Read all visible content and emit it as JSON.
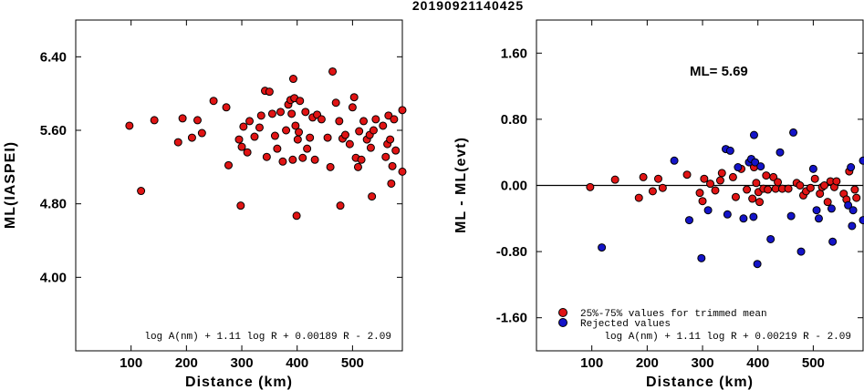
{
  "title": "20190921140425",
  "colors": {
    "accepted": "#e01414",
    "rejected": "#1414c8",
    "axis": "#000000"
  },
  "chart_data": [
    {
      "type": "scatter",
      "xlabel": "Distance (km)",
      "ylabel": "ML(IASPEI)",
      "xlim": [
        0,
        590
      ],
      "ylim": [
        3.2,
        6.8
      ],
      "xticks": [
        "100",
        "200",
        "300",
        "400",
        "500"
      ],
      "xtick_values": [
        100,
        200,
        300,
        400,
        500
      ],
      "yticks": [
        "4.00",
        "4.80",
        "5.60",
        "6.40"
      ],
      "ytick_values": [
        4.0,
        4.8,
        5.6,
        6.4
      ],
      "formula": "log A(nm) + 1.11 log R + 0.00189 R - 2.09",
      "series": [
        {
          "color": "red",
          "points": [
            [
              97,
              5.65
            ],
            [
              118,
              4.94
            ],
            [
              142,
              5.71
            ],
            [
              185,
              5.47
            ],
            [
              193,
              5.73
            ],
            [
              210,
              5.52
            ],
            [
              220,
              5.71
            ],
            [
              228,
              5.57
            ],
            [
              249,
              5.92
            ],
            [
              272,
              5.85
            ],
            [
              276,
              5.22
            ],
            [
              295,
              5.5
            ],
            [
              298,
              4.78
            ],
            [
              300,
              5.42
            ],
            [
              303,
              5.64
            ],
            [
              310,
              5.36
            ],
            [
              314,
              5.7
            ],
            [
              323,
              5.53
            ],
            [
              332,
              5.63
            ],
            [
              335,
              5.76
            ],
            [
              342,
              6.03
            ],
            [
              345,
              5.31
            ],
            [
              350,
              6.02
            ],
            [
              355,
              5.78
            ],
            [
              360,
              5.54
            ],
            [
              364,
              5.4
            ],
            [
              370,
              5.8
            ],
            [
              374,
              5.26
            ],
            [
              380,
              5.6
            ],
            [
              384,
              5.88
            ],
            [
              388,
              5.93
            ],
            [
              390,
              5.78
            ],
            [
              392,
              5.28
            ],
            [
              393,
              6.16
            ],
            [
              395,
              5.95
            ],
            [
              397,
              5.65
            ],
            [
              399,
              4.67
            ],
            [
              401,
              5.5
            ],
            [
              403,
              5.58
            ],
            [
              405,
              5.92
            ],
            [
              410,
              5.3
            ],
            [
              415,
              5.8
            ],
            [
              418,
              5.4
            ],
            [
              423,
              5.52
            ],
            [
              428,
              5.74
            ],
            [
              432,
              5.28
            ],
            [
              436,
              5.77
            ],
            [
              444,
              5.72
            ],
            [
              455,
              5.52
            ],
            [
              460,
              5.2
            ],
            [
              464,
              6.24
            ],
            [
              470,
              5.9
            ],
            [
              476,
              5.7
            ],
            [
              478,
              4.78
            ],
            [
              482,
              5.51
            ],
            [
              487,
              5.55
            ],
            [
              495,
              5.45
            ],
            [
              500,
              5.85
            ],
            [
              503,
              5.96
            ],
            [
              506,
              5.3
            ],
            [
              510,
              5.2
            ],
            [
              512,
              5.59
            ],
            [
              516,
              5.28
            ],
            [
              520,
              5.7
            ],
            [
              526,
              5.5
            ],
            [
              531,
              5.55
            ],
            [
              533,
              5.41
            ],
            [
              535,
              4.88
            ],
            [
              538,
              5.6
            ],
            [
              542,
              5.72
            ],
            [
              555,
              5.65
            ],
            [
              560,
              5.31
            ],
            [
              563,
              5.45
            ],
            [
              565,
              5.76
            ],
            [
              568,
              5.5
            ],
            [
              570,
              5.02
            ],
            [
              572,
              5.21
            ],
            [
              575,
              5.72
            ],
            [
              578,
              5.38
            ],
            [
              590,
              5.82
            ],
            [
              590,
              5.15
            ]
          ]
        }
      ]
    },
    {
      "type": "scatter",
      "xlabel": "Distance (km)",
      "ylabel": "ML - ML(evt)",
      "xlim": [
        0,
        590
      ],
      "ylim": [
        -2.0,
        2.0
      ],
      "xticks": [
        "100",
        "200",
        "300",
        "400",
        "500"
      ],
      "xtick_values": [
        100,
        200,
        300,
        400,
        500
      ],
      "yticks": [
        "-1.60",
        "-0.80",
        "0.00",
        "0.80",
        "1.60"
      ],
      "ytick_values": [
        -1.6,
        -0.8,
        0.0,
        0.8,
        1.6
      ],
      "hline": 0.0,
      "annotation": "ML= 5.69",
      "formula": "log A(nm) + 1.11 log R + 0.00219 R - 2.09",
      "legend_position": "bottom-left",
      "series": [
        {
          "name": "25%-75% values for trimmed mean",
          "color": "red",
          "points": [
            [
              97,
              -0.02
            ],
            [
              142,
              0.07
            ],
            [
              185,
              -0.15
            ],
            [
              193,
              0.1
            ],
            [
              210,
              -0.07
            ],
            [
              220,
              0.08
            ],
            [
              228,
              -0.03
            ],
            [
              272,
              0.13
            ],
            [
              295,
              -0.09
            ],
            [
              300,
              -0.19
            ],
            [
              303,
              0.08
            ],
            [
              314,
              0.02
            ],
            [
              323,
              -0.06
            ],
            [
              332,
              0.06
            ],
            [
              335,
              0.15
            ],
            [
              355,
              0.1
            ],
            [
              360,
              -0.14
            ],
            [
              370,
              0.2
            ],
            [
              380,
              -0.05
            ],
            [
              390,
              -0.16
            ],
            [
              393,
              0.22
            ],
            [
              397,
              0.03
            ],
            [
              401,
              -0.08
            ],
            [
              403,
              -0.2
            ],
            [
              410,
              -0.04
            ],
            [
              415,
              0.12
            ],
            [
              418,
              -0.05
            ],
            [
              428,
              0.1
            ],
            [
              432,
              -0.04
            ],
            [
              436,
              0.04
            ],
            [
              444,
              -0.04
            ],
            [
              455,
              -0.04
            ],
            [
              470,
              0.03
            ],
            [
              476,
              0.0
            ],
            [
              482,
              -0.12
            ],
            [
              487,
              -0.07
            ],
            [
              495,
              -0.03
            ],
            [
              503,
              0.08
            ],
            [
              512,
              -0.1
            ],
            [
              516,
              -0.02
            ],
            [
              520,
              0.0
            ],
            [
              526,
              -0.2
            ],
            [
              531,
              0.05
            ],
            [
              538,
              -0.02
            ],
            [
              542,
              0.05
            ],
            [
              555,
              -0.1
            ],
            [
              560,
              -0.17
            ],
            [
              565,
              0.17
            ],
            [
              575,
              -0.05
            ],
            [
              578,
              -0.15
            ]
          ]
        },
        {
          "name": "Rejected values",
          "color": "blue",
          "points": [
            [
              118,
              -0.75
            ],
            [
              249,
              0.3
            ],
            [
              276,
              -0.42
            ],
            [
              298,
              -0.88
            ],
            [
              310,
              -0.3
            ],
            [
              342,
              0.44
            ],
            [
              345,
              -0.35
            ],
            [
              350,
              0.42
            ],
            [
              364,
              0.22
            ],
            [
              374,
              -0.4
            ],
            [
              384,
              0.28
            ],
            [
              388,
              0.32
            ],
            [
              392,
              -0.38
            ],
            [
              393,
              0.61
            ],
            [
              395,
              0.28
            ],
            [
              399,
              -0.95
            ],
            [
              405,
              0.23
            ],
            [
              423,
              -0.65
            ],
            [
              440,
              0.4
            ],
            [
              460,
              -0.37
            ],
            [
              464,
              0.64
            ],
            [
              478,
              -0.8
            ],
            [
              500,
              0.2
            ],
            [
              506,
              -0.3
            ],
            [
              510,
              -0.4
            ],
            [
              533,
              -0.28
            ],
            [
              535,
              -0.68
            ],
            [
              563,
              -0.24
            ],
            [
              568,
              0.22
            ],
            [
              570,
              -0.49
            ],
            [
              572,
              -0.3
            ],
            [
              590,
              0.3
            ],
            [
              590,
              -0.42
            ]
          ]
        }
      ]
    }
  ]
}
